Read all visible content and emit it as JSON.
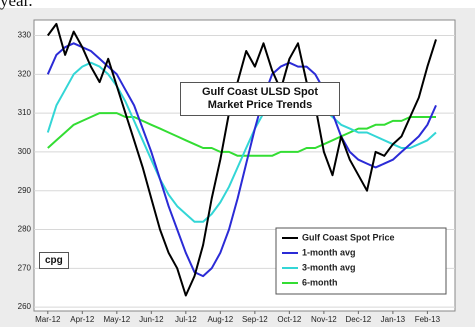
{
  "caption": "year.",
  "chart_data": {
    "type": "line",
    "title": "Gulf Coast ULSD Spot Market Price Trends",
    "y_label": "cpg",
    "x": [
      0,
      0.25,
      0.5,
      0.75,
      1,
      1.25,
      1.5,
      1.75,
      2,
      2.25,
      2.5,
      2.75,
      3,
      3.25,
      3.5,
      3.75,
      4,
      4.25,
      4.5,
      4.75,
      5,
      5.25,
      5.5,
      5.75,
      6,
      6.25,
      6.5,
      6.75,
      7,
      7.25,
      7.5,
      7.75,
      8,
      8.25,
      8.5,
      8.75,
      9,
      9.25,
      9.5,
      9.75,
      10,
      10.25,
      10.5,
      10.75,
      11,
      11.25
    ],
    "xlim": [
      -0.4,
      11.8
    ],
    "xticks": [
      {
        "value": 0,
        "label": "Mar-12"
      },
      {
        "value": 1,
        "label": "Apr-12"
      },
      {
        "value": 2,
        "label": "May-12"
      },
      {
        "value": 3,
        "label": "Jun-12"
      },
      {
        "value": 4,
        "label": "Jul-12"
      },
      {
        "value": 5,
        "label": "Aug-12"
      },
      {
        "value": 6,
        "label": "Sep-12"
      },
      {
        "value": 7,
        "label": "Oct-12"
      },
      {
        "value": 8,
        "label": "Nov-12"
      },
      {
        "value": 9,
        "label": "Dec-12"
      },
      {
        "value": 10,
        "label": "Jan-13"
      },
      {
        "value": 11,
        "label": "Feb-13"
      }
    ],
    "ylim": [
      259,
      334
    ],
    "yticks": [
      260,
      270,
      280,
      290,
      300,
      310,
      320,
      330
    ],
    "grid": true,
    "legend": "lower right",
    "series": [
      {
        "name": "Gulf Coast Spot Price",
        "color": "#000000",
        "values": [
          330,
          333,
          325,
          331,
          327,
          322,
          318,
          324,
          317,
          310,
          303,
          296,
          288,
          280,
          274,
          270,
          263,
          268,
          276,
          288,
          298,
          310,
          318,
          326,
          322,
          328,
          321,
          316,
          324,
          328,
          318,
          312,
          300,
          294,
          304,
          298,
          294,
          290,
          300,
          299,
          302,
          304,
          309,
          314,
          322,
          329
        ]
      },
      {
        "name": "1-month avg",
        "color": "#2b2bd6",
        "values": [
          320,
          325,
          327,
          328,
          327,
          326,
          324,
          322,
          320,
          316,
          312,
          306,
          300,
          293,
          286,
          280,
          274,
          269,
          268,
          270,
          274,
          280,
          288,
          297,
          306,
          314,
          320,
          322,
          323,
          322,
          322,
          320,
          316,
          310,
          304,
          300,
          298,
          297,
          296,
          297,
          298,
          300,
          302,
          304,
          307,
          312
        ]
      },
      {
        "name": "3-month avg",
        "color": "#33d6d6",
        "values": [
          305,
          312,
          316,
          320,
          322,
          323,
          322,
          320,
          317,
          313,
          308,
          303,
          298,
          293,
          289,
          286,
          284,
          282,
          282,
          284,
          287,
          291,
          296,
          301,
          306,
          310,
          313,
          315,
          316,
          316,
          315,
          313,
          311,
          309,
          307,
          306,
          305,
          305,
          304,
          303,
          302,
          301,
          301,
          302,
          303,
          305
        ]
      },
      {
        "name": "6-month",
        "color": "#33dd33",
        "values": [
          301,
          303,
          305,
          307,
          308,
          309,
          310,
          310,
          310,
          309,
          309,
          308,
          307,
          306,
          305,
          304,
          303,
          302,
          301,
          301,
          300,
          300,
          299,
          299,
          299,
          299,
          299,
          300,
          300,
          300,
          301,
          301,
          302,
          303,
          304,
          305,
          306,
          306,
          307,
          307,
          308,
          308,
          309,
          309,
          309,
          309
        ]
      }
    ]
  }
}
